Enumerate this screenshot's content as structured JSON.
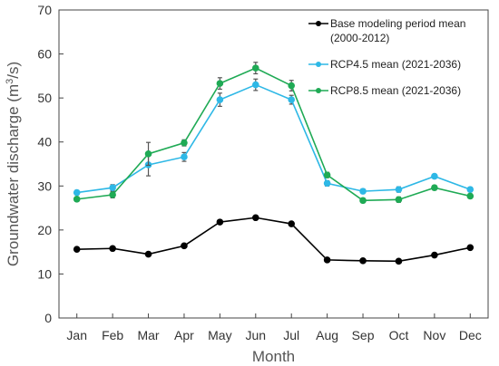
{
  "chart_data": {
    "type": "line",
    "xlabel": "Month",
    "ylabel": "Groundwater discharge (m³/s)",
    "ylim": [
      0,
      70
    ],
    "yticks": [
      0,
      10,
      20,
      30,
      40,
      50,
      60,
      70
    ],
    "grid": false,
    "legend_position": "top-right",
    "categories": [
      "Jan",
      "Feb",
      "Mar",
      "Apr",
      "May",
      "Jun",
      "Jul",
      "Aug",
      "Sep",
      "Oct",
      "Nov",
      "Dec"
    ],
    "series": [
      {
        "name": "Base modeling period mean (2000-2012)",
        "legend_lines": [
          "Base modeling period mean",
          "(2000-2012)"
        ],
        "color": "#000000",
        "values": [
          15.6,
          15.8,
          14.5,
          16.4,
          21.8,
          22.8,
          21.4,
          13.2,
          13.0,
          12.9,
          14.3,
          16.0
        ],
        "errors": null
      },
      {
        "name": "RCP4.5 mean (2021-2036)",
        "legend_lines": [
          "RCP4.5 mean (2021-2036)"
        ],
        "color": "#2eb8e6",
        "values": [
          28.5,
          29.6,
          34.8,
          36.6,
          49.6,
          53.0,
          49.6,
          30.6,
          28.8,
          29.2,
          32.2,
          29.2
        ],
        "errors": [
          0.5,
          0.7,
          2.5,
          1.0,
          1.5,
          1.3,
          1.0,
          0.6,
          0.5,
          0.6,
          0.4,
          0.5
        ]
      },
      {
        "name": "RCP8.5 mean (2021-2036)",
        "legend_lines": [
          "RCP8.5 mean (2021-2036)"
        ],
        "color": "#1faa55",
        "values": [
          27.0,
          28.0,
          37.3,
          39.8,
          53.3,
          56.8,
          52.8,
          32.5,
          26.7,
          26.9,
          29.6,
          27.7
        ],
        "errors": [
          0.5,
          0.7,
          2.6,
          0.7,
          1.3,
          1.3,
          1.2,
          0.6,
          0.5,
          0.6,
          0.5,
          0.5
        ]
      }
    ]
  }
}
